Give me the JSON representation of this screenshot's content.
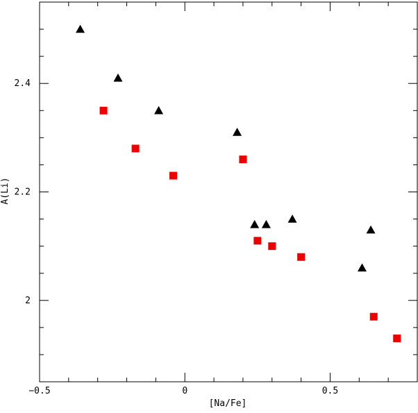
{
  "chart_data": {
    "type": "scatter",
    "title": "",
    "xlabel": "[Na/Fe]",
    "ylabel": "A(Li)",
    "xlim": [
      -0.5,
      0.8
    ],
    "ylim": [
      1.85,
      2.55
    ],
    "x_major_ticks": [
      -0.5,
      0,
      0.5
    ],
    "x_tick_labels": [
      "−0.5",
      "0",
      "0.5"
    ],
    "y_major_ticks": [
      2.0,
      2.2,
      2.4
    ],
    "y_tick_labels": [
      "2",
      "2.2",
      "2.4"
    ],
    "x_minor_step": 0.1,
    "y_minor_step": 0.05,
    "grid": false,
    "series": [
      {
        "marker": "triangle",
        "color": "#000000",
        "points": [
          {
            "x": -0.36,
            "y": 2.5
          },
          {
            "x": -0.23,
            "y": 2.41
          },
          {
            "x": -0.09,
            "y": 2.35
          },
          {
            "x": 0.18,
            "y": 2.31
          },
          {
            "x": 0.24,
            "y": 2.14
          },
          {
            "x": 0.28,
            "y": 2.14
          },
          {
            "x": 0.37,
            "y": 2.15
          },
          {
            "x": 0.61,
            "y": 2.06
          },
          {
            "x": 0.64,
            "y": 2.13
          }
        ]
      },
      {
        "marker": "square",
        "color": "#ee0000",
        "points": [
          {
            "x": -0.28,
            "y": 2.35
          },
          {
            "x": -0.17,
            "y": 2.28
          },
          {
            "x": -0.04,
            "y": 2.23
          },
          {
            "x": 0.2,
            "y": 2.26
          },
          {
            "x": 0.25,
            "y": 2.11
          },
          {
            "x": 0.3,
            "y": 2.1
          },
          {
            "x": 0.4,
            "y": 2.08
          },
          {
            "x": 0.65,
            "y": 1.97
          },
          {
            "x": 0.73,
            "y": 1.93
          }
        ]
      }
    ]
  }
}
